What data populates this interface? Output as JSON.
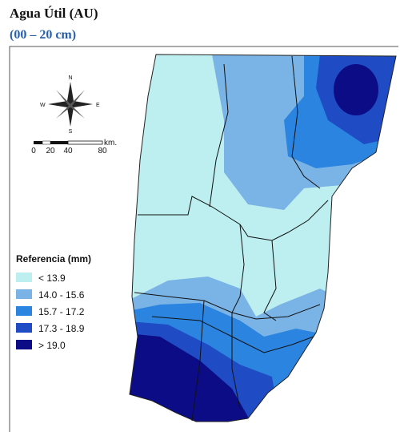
{
  "header": {
    "title": "Agua Útil (AU)",
    "subtitle": "(00 – 20 cm)"
  },
  "compass": {
    "north": "N",
    "south": "S",
    "east": "E",
    "west": "W"
  },
  "scale": {
    "labels": [
      "0",
      "20",
      "40",
      "80"
    ],
    "unit": "km."
  },
  "legend": {
    "title": "Referencia (mm)",
    "items": [
      {
        "label": "< 13.9",
        "color": "#bdeef0"
      },
      {
        "label": "14.0 - 15.6",
        "color": "#7ab3e6"
      },
      {
        "label": "15.7 - 17.2",
        "color": "#2b84df"
      },
      {
        "label": "17.3 - 18.9",
        "color": "#1f4cc4"
      },
      {
        "label": "> 19.0",
        "color": "#0b0c86"
      }
    ]
  }
}
